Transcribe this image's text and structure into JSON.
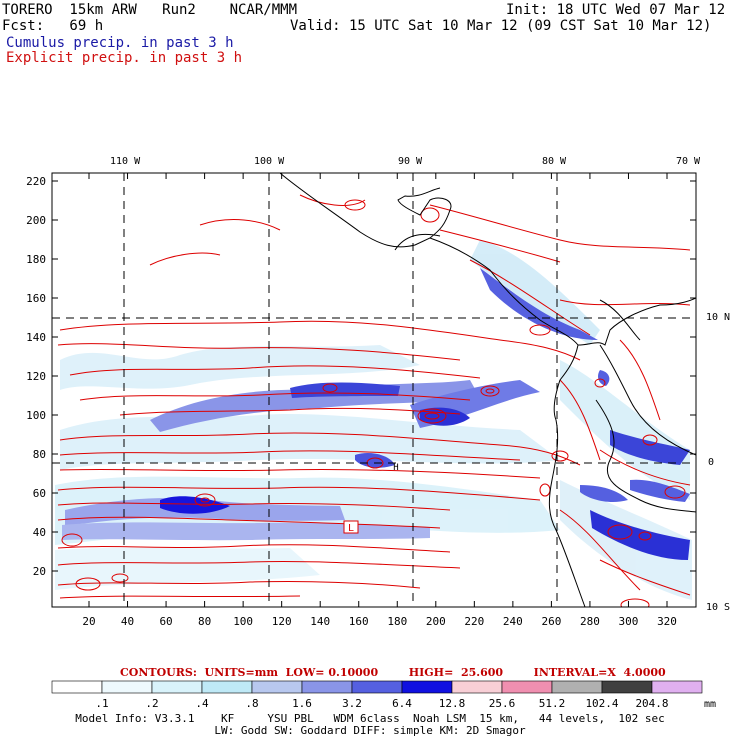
{
  "header": {
    "model": "TORERO  15km ARW   Run2    NCAR/MMM",
    "init": "Init: 18 UTC Wed 07 Mar 12",
    "fcst": "Fcst:   69 h",
    "valid": "Valid: 15 UTC Sat 10 Mar 12 (09 CST Sat 10 Mar 12)",
    "cumulus": "Cumulus precip. in past 3 h",
    "explicit": "Explicit precip. in past 3 h"
  },
  "map": {
    "lon_labels": [
      "110 W",
      "100 W",
      "90 W",
      "80 W",
      "70 W"
    ],
    "lat_labels": [
      "10 N",
      "0",
      "10 S"
    ],
    "y_ticks": [
      "220",
      "200",
      "180",
      "160",
      "140",
      "120",
      "100",
      "80",
      "60",
      "40",
      "20"
    ],
    "x_ticks": [
      "20",
      "40",
      "60",
      "80",
      "100",
      "120",
      "140",
      "160",
      "180",
      "200",
      "220",
      "240",
      "260",
      "280",
      "300",
      "320"
    ],
    "low_marker": "L",
    "high_marker": "H"
  },
  "contours_text": "CONTOURS:  UNITS=mm  LOW= 0.10000        HIGH=  25.600        INTERVAL=X  4.0000",
  "colorbar": {
    "labels": [
      ".1",
      ".2",
      ".4",
      ".8",
      "1.6",
      "3.2",
      "6.4",
      "12.8",
      "25.6",
      "51.2",
      "102.4",
      "204.8"
    ],
    "unit": "mm",
    "colors": [
      "#ffffff",
      "#eef9fd",
      "#d9f3fb",
      "#bfe9f6",
      "#b8c8ef",
      "#8a95e8",
      "#5560e0",
      "#1010e0",
      "#f8cfd6",
      "#f08fb0",
      "#b0b0b0",
      "#404040",
      "#e0b0f0"
    ]
  },
  "footer": {
    "line1": "Model Info: V3.3.1    KF     YSU PBL   WDM 6class  Noah LSM  15 km,   44 levels,  102 sec",
    "line2": "LW: Godd SW: Goddard DIFF: simple KM: 2D Smagor"
  }
}
